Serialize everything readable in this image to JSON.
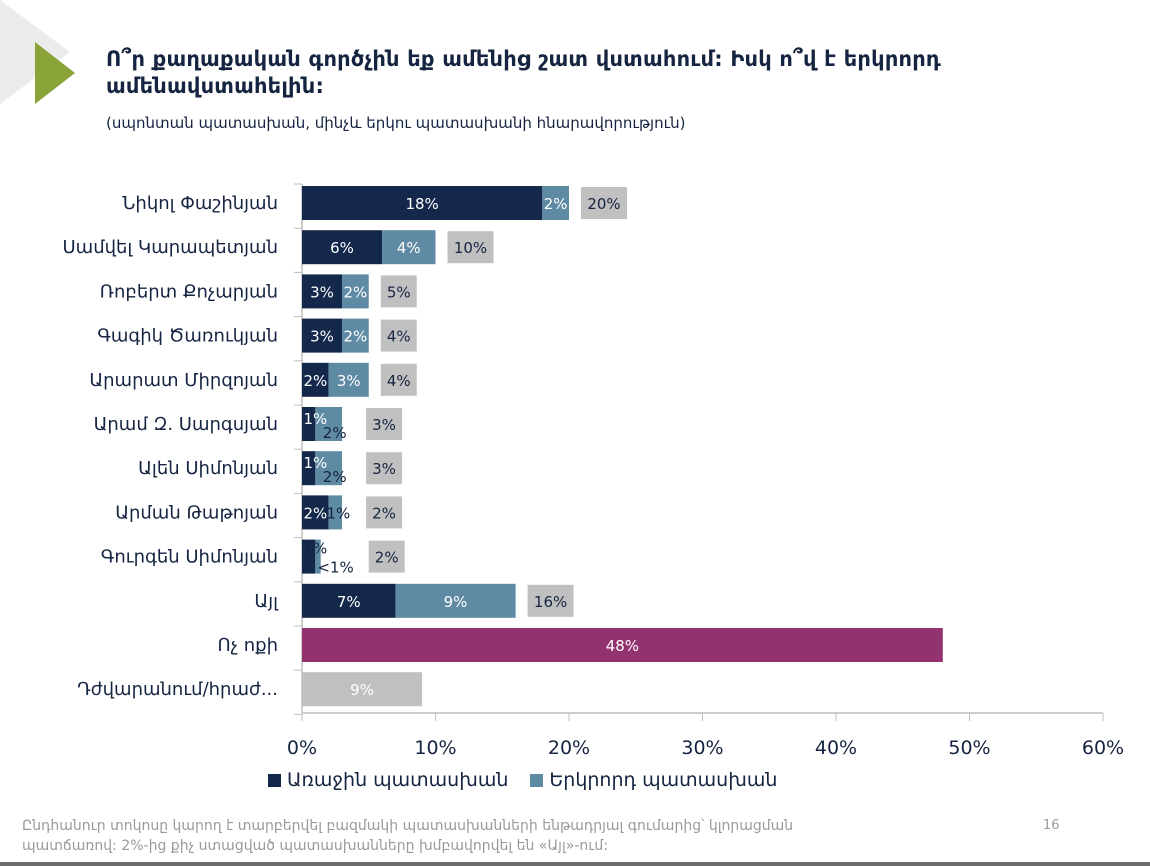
{
  "header": {
    "title": "Ո՞ր քաղաքական գործչին եք ամենից շատ վստահում: Իսկ ո՞վ է երկրորդ ամենավստահելին:",
    "subtitle": "(սպոնտան պատասխան, մինչև երկու պատասխանի հնարավորություն)"
  },
  "footer": {
    "note_line1": "Ընդհանուր տոկոսը կարող է տարբերվել բազմակի պատասխանների ենթադրյալ գումարից՝ կլորացման",
    "note_line2": "պատճառով: 2%-ից քիչ ստացված պատասխանները խմբավորվել են «Այլ»-ում:",
    "page_number": "16"
  },
  "colors": {
    "first": "#13284a",
    "second": "#5f8aa4",
    "total": "#c0c0c0",
    "none": "#92336f",
    "difficult": "#c0c0c0",
    "accent": "#8aa43a"
  },
  "chart_data": {
    "type": "bar",
    "orientation": "horizontal",
    "stacked": true,
    "categories": [
      "Նիկոլ Փաշինյան",
      "Սամվել Կարապետյան",
      "Ռոբերտ Քոչարյան",
      "Գագիկ Ծառուկյան",
      "Արարատ Միրզոյան",
      "Արամ Զ. Սարգսյան",
      "Ալեն Սիմոնյան",
      "Արման Թաթոյան",
      "Գուրգեն Սիմոնյան",
      "Այլ",
      "Ոչ ոքի",
      "Դժվարանում/հրաժ..."
    ],
    "series": [
      {
        "name": "Առաջին պատասխան",
        "values": [
          18,
          6,
          3,
          3,
          2,
          1,
          1,
          2,
          1,
          7,
          null,
          null
        ],
        "labels": [
          "18%",
          "6%",
          "3%",
          "3%",
          "2%",
          "1%",
          "1%",
          "2%",
          "1%",
          "7%",
          "",
          ""
        ]
      },
      {
        "name": "Երկրորդ պատասխան",
        "values": [
          2,
          4,
          2,
          2,
          3,
          2,
          2,
          1,
          0.4,
          9,
          null,
          null
        ],
        "labels": [
          "2%",
          "4%",
          "2%",
          "2%",
          "3%",
          "2%",
          "2%",
          "1%",
          "<1%",
          "9%",
          "",
          ""
        ]
      }
    ],
    "totals": [
      "20%",
      "10%",
      "5%",
      "4%",
      "4%",
      "3%",
      "3%",
      "2%",
      "2%",
      "16%",
      "",
      ""
    ],
    "single_bars": [
      {
        "category": "Ոչ ոքի",
        "value": 48,
        "label": "48%"
      },
      {
        "category": "Դժվարանում/հրաժ...",
        "value": 9,
        "label": "9%"
      }
    ],
    "xlim": [
      0,
      60
    ],
    "xticks": [
      "0%",
      "10%",
      "20%",
      "30%",
      "40%",
      "50%",
      "60%"
    ],
    "xtick_values": [
      0,
      10,
      20,
      30,
      40,
      50,
      60
    ],
    "legend_position": "bottom-left",
    "grid": false
  }
}
